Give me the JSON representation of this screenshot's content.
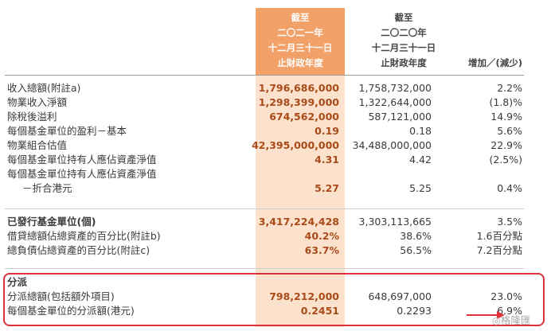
{
  "header": {
    "current": [
      "截至",
      "二〇二一年",
      "十二月三十一日",
      "止財政年度"
    ],
    "previous": [
      "截至",
      "二〇二〇年",
      "十二月三十一日",
      "止財政年度"
    ],
    "change": "增加／(減少)"
  },
  "rows": [
    {
      "label": "收入總額(附註a)",
      "current": "1,796,686,000",
      "previous": "1,758,732,000",
      "change": "2.2%"
    },
    {
      "label": "物業收入淨額",
      "current": "1,298,399,000",
      "previous": "1,322,644,000",
      "change": "(1.8)%"
    },
    {
      "label": "除稅後溢利",
      "current": "674,562,000",
      "previous": "587,121,000",
      "change": "14.9%"
    },
    {
      "label": "每個基金單位的盈利－基本",
      "current": "0.19",
      "previous": "0.18",
      "change": "5.6%"
    },
    {
      "label": "物業組合估值",
      "current": "42,395,000,000",
      "previous": "34,488,000,000",
      "change": "22.9%"
    },
    {
      "label": "每個基金單位持有人應佔資產淨值",
      "current": "4.31",
      "previous": "4.42",
      "change": "(2.5%)"
    },
    {
      "label": "每個基金單位持有人應佔資產淨值",
      "current": "",
      "previous": "",
      "change": ""
    },
    {
      "label": "－折合港元",
      "current": "5.27",
      "previous": "5.25",
      "change": "0.4%"
    },
    {
      "label": "已發行基金單位(個)",
      "current": "3,417,224,428",
      "previous": "3,303,113,665",
      "change": "3.5%"
    },
    {
      "label": "借貸總額佔總資產的百分比(附註b)",
      "current": "40.2%",
      "previous": "38.6%",
      "change": "1.6百分點"
    },
    {
      "label": "總負債佔總資產的百分比(附註c)",
      "current": "63.7%",
      "previous": "56.5%",
      "change": "7.2百分點"
    },
    {
      "label": "分派",
      "current": "",
      "previous": "",
      "change": ""
    },
    {
      "label": "分派總額(包括額外項目)",
      "current": "798,212,000",
      "previous": "648,697,000",
      "change": "23.0%"
    },
    {
      "label": "每個基金單位的分派額(港元)",
      "current": "0.2451",
      "previous": "0.2293",
      "change": "6.9%"
    }
  ],
  "watermark": "格隆匯",
  "colors": {
    "accent": "#f2a168",
    "accent_light": "#fce2cc",
    "value_text": "#a94a19",
    "highlight_box": "#e0303a"
  }
}
